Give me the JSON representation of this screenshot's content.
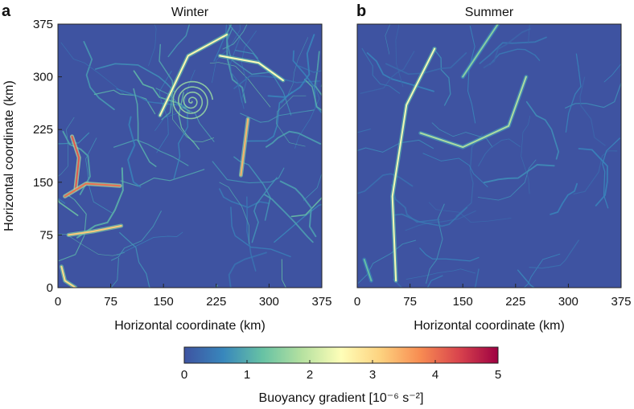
{
  "chart_data": [
    {
      "type": "heatmap",
      "panel_letter": "a",
      "title": "Winter",
      "xlabel": "Horizontal coordinate (km)",
      "ylabel": "Horizontal coordinate (km)",
      "xlim": [
        0,
        375
      ],
      "ylim": [
        0,
        375
      ],
      "xticks": [
        "0",
        "75",
        "150",
        "225",
        "300",
        "375"
      ],
      "yticks": [
        "0",
        "75",
        "150",
        "225",
        "300",
        "375"
      ],
      "x_tick_values": [
        0,
        75,
        150,
        225,
        300,
        375
      ],
      "y_tick_values": [
        0,
        75,
        150,
        225,
        300,
        375
      ],
      "field": "buoyancy gradient magnitude",
      "typical_value": 0.6,
      "max_value": 5,
      "features": [
        {
          "kind": "eddy",
          "center": [
            190,
            265
          ],
          "radius": 30,
          "strength": 1.6
        },
        {
          "kind": "front",
          "path": [
            [
              25,
              140
            ],
            [
              30,
              185
            ],
            [
              20,
              215
            ]
          ],
          "strength": 4.2
        },
        {
          "kind": "front",
          "path": [
            [
              10,
              130
            ],
            [
              40,
              148
            ],
            [
              88,
              145
            ]
          ],
          "strength": 4.0
        },
        {
          "kind": "front",
          "path": [
            [
              15,
              75
            ],
            [
              50,
              80
            ],
            [
              90,
              88
            ]
          ],
          "strength": 3.2
        },
        {
          "kind": "front",
          "path": [
            [
              145,
              245
            ],
            [
              185,
              330
            ],
            [
              240,
              360
            ]
          ],
          "strength": 2.6
        },
        {
          "kind": "front",
          "path": [
            [
              260,
              160
            ],
            [
              265,
              200
            ],
            [
              270,
              240
            ]
          ],
          "strength": 3.4
        },
        {
          "kind": "front",
          "path": [
            [
              230,
              330
            ],
            [
              285,
              320
            ],
            [
              320,
              295
            ]
          ],
          "strength": 2.5
        },
        {
          "kind": "front",
          "path": [
            [
              5,
              30
            ],
            [
              10,
              10
            ],
            [
              25,
              0
            ]
          ],
          "strength": 3.0
        }
      ]
    },
    {
      "type": "heatmap",
      "panel_letter": "b",
      "title": "Summer",
      "xlabel": "Horizontal coordinate (km)",
      "ylabel": "",
      "xlim": [
        0,
        375
      ],
      "ylim": [
        0,
        375
      ],
      "xticks": [
        "0",
        "75",
        "150",
        "225",
        "300",
        "375"
      ],
      "yticks": [],
      "x_tick_values": [
        0,
        75,
        150,
        225,
        300,
        375
      ],
      "field": "buoyancy gradient magnitude",
      "typical_value": 0.35,
      "max_value": 2.5,
      "features": [
        {
          "kind": "front",
          "path": [
            [
              55,
              10
            ],
            [
              50,
              130
            ],
            [
              70,
              260
            ],
            [
              110,
              340
            ]
          ],
          "strength": 2.4
        },
        {
          "kind": "front",
          "path": [
            [
              90,
              220
            ],
            [
              150,
              200
            ],
            [
              215,
              230
            ],
            [
              240,
              300
            ]
          ],
          "strength": 1.8
        },
        {
          "kind": "front",
          "path": [
            [
              150,
              300
            ],
            [
              180,
              345
            ],
            [
              200,
              375
            ]
          ],
          "strength": 1.5
        },
        {
          "kind": "front",
          "path": [
            [
              10,
              40
            ],
            [
              20,
              10
            ]
          ],
          "strength": 1.2
        }
      ]
    }
  ],
  "colorbar": {
    "label": "Buoyancy gradient [10⁻⁶ s⁻²]",
    "ticks": [
      "0",
      "1",
      "2",
      "3",
      "4",
      "5"
    ],
    "tick_values": [
      0,
      1,
      2,
      3,
      4,
      5
    ],
    "range": [
      0,
      5
    ],
    "colors": [
      "#3e53a1",
      "#3887bc",
      "#67c2a4",
      "#b5e1a0",
      "#fefeb8",
      "#fdd27f",
      "#f88d52",
      "#d9444d",
      "#9e0142"
    ]
  }
}
